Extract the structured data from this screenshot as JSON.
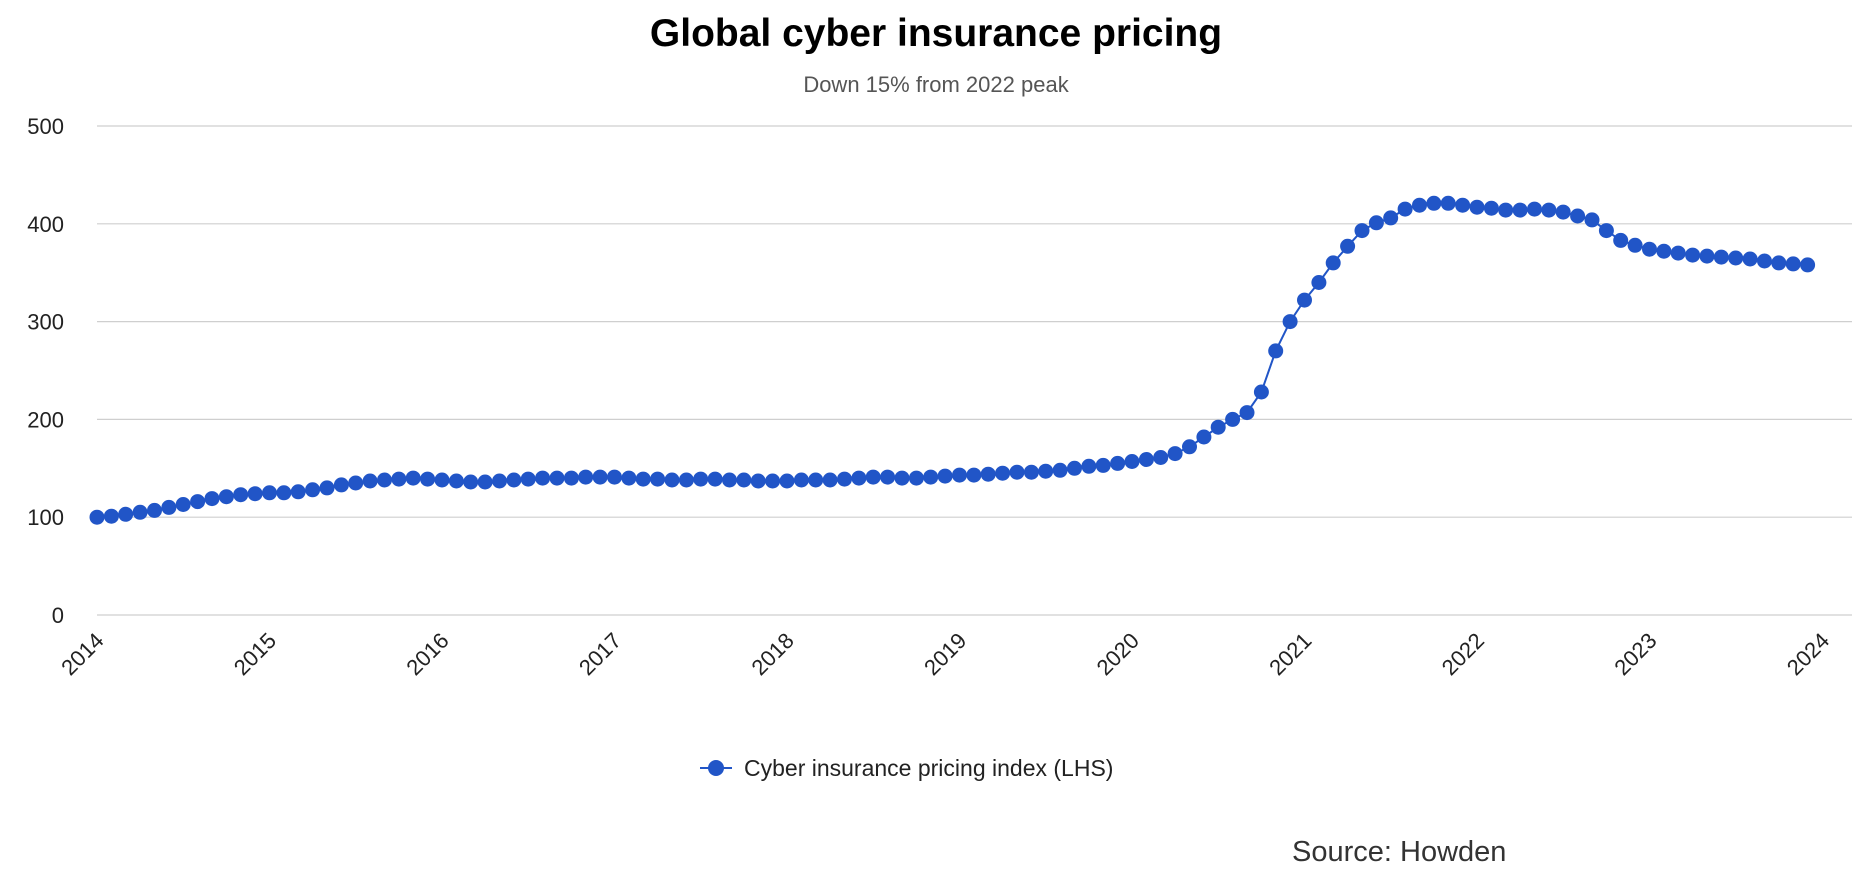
{
  "chart_data": {
    "type": "line",
    "title": "Global cyber insurance pricing",
    "subtitle": "Down 15% from 2022 peak",
    "xlabel": "",
    "ylabel": "",
    "ylim": [
      0,
      500
    ],
    "xlim": [
      2014,
      2024.17
    ],
    "grid": true,
    "legend_position": "bottom",
    "y_ticks": [
      "0",
      "100",
      "200",
      "300",
      "400",
      "500"
    ],
    "x_ticks": [
      "2014",
      "2015",
      "2016",
      "2017",
      "2018",
      "2019",
      "2020",
      "2021",
      "2022",
      "2023",
      "2024"
    ],
    "series": [
      {
        "name": "Cyber insurance pricing index (LHS)",
        "color": "#2155c7",
        "x_start": 2014,
        "x_step": 0.0833,
        "values": [
          100,
          101,
          103,
          105,
          107,
          110,
          113,
          116,
          119,
          121,
          123,
          124,
          125,
          125,
          126,
          128,
          130,
          133,
          135,
          137,
          138,
          139,
          140,
          139,
          138,
          137,
          136,
          136,
          137,
          138,
          139,
          140,
          140,
          140,
          141,
          141,
          141,
          140,
          139,
          139,
          138,
          138,
          139,
          139,
          138,
          138,
          137,
          137,
          137,
          138,
          138,
          138,
          139,
          140,
          141,
          141,
          140,
          140,
          141,
          142,
          143,
          143,
          144,
          145,
          146,
          146,
          147,
          148,
          150,
          152,
          153,
          155,
          157,
          159,
          161,
          165,
          172,
          182,
          192,
          200,
          207,
          228,
          270,
          300,
          322,
          340,
          360,
          377,
          393,
          401,
          406,
          415,
          419,
          421,
          421,
          419,
          417,
          416,
          414,
          414,
          415,
          414,
          412,
          408,
          404,
          393,
          383,
          378,
          374,
          372,
          370,
          368,
          367,
          366,
          365,
          364,
          362,
          360,
          359,
          358
        ]
      }
    ],
    "source": "Source: Howden"
  }
}
